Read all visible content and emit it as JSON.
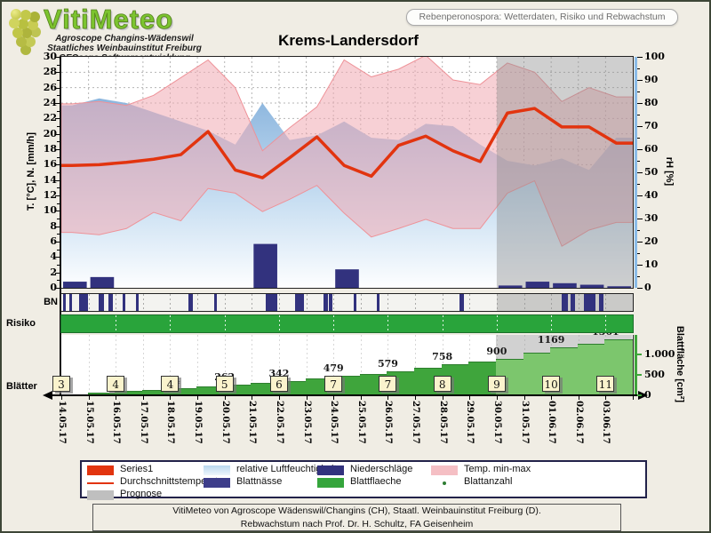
{
  "header": {
    "logo_title": "VitiMeteo",
    "logo_lines": [
      "Agroscope Changins-Wädenswil",
      "Staatliches Weinbauinstitut Freiburg",
      "GEOsens Softwareentwicklung"
    ],
    "info_box": "Rebenperonospora: Wetterdaten, Risiko und Rebwachstum",
    "title": "Krems-Landersdorf"
  },
  "axes": {
    "left_title": "T. [°C], N. [mm/h]",
    "left_min": 0,
    "left_max": 30,
    "left_step": 2,
    "right_title": "rH [%]",
    "right_min": 0,
    "right_max": 100,
    "right_step": 10,
    "leaf_axis_title": "Blattfläche [cm²]",
    "leaf_ticks": [
      {
        "value": 0,
        "label": "0"
      },
      {
        "value": 500,
        "label": "500"
      },
      {
        "value": 1000,
        "label": "1.000"
      }
    ]
  },
  "labels": {
    "bn": "BN",
    "risiko": "Risiko",
    "blaetter": "Blätter"
  },
  "chart_data": {
    "type": "line",
    "title": "Krems-Landersdorf",
    "x": [
      "14.05.17",
      "15.05.17",
      "16.05.17",
      "17.05.17",
      "18.05.17",
      "19.05.17",
      "20.05.17",
      "21.05.17",
      "22.05.17",
      "23.05.17",
      "24.05.17",
      "25.05.17",
      "26.05.17",
      "27.05.17",
      "28.05.17",
      "29.05.17",
      "30.05.17",
      "31.05.17",
      "01.06.17",
      "02.06.17",
      "03.06.17"
    ],
    "ylim_left": [
      0,
      30
    ],
    "ylim_right": [
      0,
      100
    ],
    "ylim_leaf": [
      0,
      1450
    ],
    "prognose_start_index": 16,
    "series": [
      {
        "name": "Durchschnittstemperatur",
        "type": "line",
        "axis": "left",
        "color": "#e2340f",
        "values": [
          15.9,
          16.0,
          16.3,
          16.7,
          17.3,
          20.3,
          15.3,
          14.3,
          16.9,
          19.6,
          15.9,
          14.5,
          18.5,
          19.7,
          17.8,
          16.4,
          22.7,
          23.3,
          20.9,
          20.9,
          18.8
        ]
      },
      {
        "name": "Temp. min-max",
        "type": "band",
        "axis": "left",
        "color": "#f3b8bd",
        "max": [
          23.9,
          24.2,
          23.7,
          25.0,
          27.3,
          29.6,
          26.0,
          17.8,
          20.8,
          23.5,
          29.6,
          27.4,
          28.4,
          30.2,
          27.0,
          26.4,
          29.2,
          28.0,
          24.2,
          26.0,
          24.8
        ],
        "min": [
          7.2,
          6.9,
          7.7,
          9.8,
          8.7,
          12.9,
          12.3,
          9.9,
          11.5,
          13.3,
          9.7,
          6.6,
          7.7,
          8.9,
          7.7,
          7.7,
          12.3,
          13.9,
          5.4,
          7.5,
          8.5
        ]
      },
      {
        "name": "relative Luftfeuchtigkeit",
        "type": "area",
        "axis": "right",
        "color": "#9fc3e6",
        "values": [
          79,
          82,
          80,
          76,
          72,
          68,
          62,
          80,
          64,
          66,
          72,
          65,
          64,
          71,
          70,
          62,
          55,
          53,
          56,
          51,
          65
        ]
      },
      {
        "name": "Niederschläge",
        "type": "bar",
        "axis": "left",
        "color": "#32327e",
        "values": [
          0.8,
          1.4,
          0,
          0,
          0,
          0,
          0,
          5.7,
          0,
          0,
          2.4,
          0,
          0,
          0,
          0,
          0,
          0.3,
          0.8,
          0.6,
          0.4,
          0.2
        ]
      },
      {
        "name": "Blattnässe",
        "type": "intervals",
        "color": "#32327e",
        "intervals": [
          [
            0.08,
            0.16
          ],
          [
            0.3,
            0.4
          ],
          [
            0.65,
            0.98
          ],
          [
            1.37,
            1.57
          ],
          [
            1.73,
            1.89
          ],
          [
            2.25,
            2.35
          ],
          [
            2.74,
            2.84
          ],
          [
            4.67,
            4.84
          ],
          [
            5.62,
            5.72
          ],
          [
            7.5,
            7.95
          ],
          [
            8.58,
            8.92
          ],
          [
            9.63,
            9.8
          ],
          [
            9.84,
            9.97
          ],
          [
            10.75,
            10.85
          ],
          [
            11.58,
            11.7
          ],
          [
            14.62,
            14.8
          ],
          [
            18.38,
            18.62
          ],
          [
            18.7,
            18.88
          ],
          [
            19.2,
            19.63
          ],
          [
            19.75,
            19.92
          ]
        ]
      },
      {
        "name": "Risiko",
        "type": "status",
        "color": "#29a43b"
      },
      {
        "name": "Blattflaeche",
        "type": "bar",
        "axis": "leaf",
        "color": "#3fa53c",
        "color_forecast": "#7cc66d",
        "values": [
          30,
          65,
          100,
          132,
          164,
          213,
          262,
          302,
          342,
          410,
          479,
          529,
          579,
          668,
          758,
          829,
          900,
          1034,
          1169,
          1265,
          1361
        ],
        "step_labels": [
          "",
          "",
          "164",
          "262",
          "342",
          "479",
          "579",
          "758",
          "900",
          "1169",
          "1361"
        ],
        "counts": [
          3,
          4,
          4,
          5,
          6,
          7,
          7,
          8,
          9,
          10,
          11
        ]
      }
    ]
  },
  "legend": {
    "items": [
      {
        "label": "Series1",
        "swatch": "rect",
        "color": "#e2340f",
        "col": 0,
        "row": 0
      },
      {
        "label": "relative Luftfeuchtigkeit",
        "swatch": "gradient",
        "color": "#b9d8ee",
        "col": 1,
        "row": 0
      },
      {
        "label": "Niederschläge",
        "swatch": "rect",
        "color": "#32327e",
        "col": 2,
        "row": 0
      },
      {
        "label": "Temp. min-max",
        "swatch": "rect",
        "color": "#f5bfc4",
        "col": 3,
        "row": 0
      },
      {
        "label": "Durchschnittstemperatur",
        "swatch": "line",
        "color": "#e2340f",
        "col": 0,
        "row": 1
      },
      {
        "label": "Blattnässe",
        "swatch": "rect",
        "color": "#3d3d8a",
        "col": 1,
        "row": 1
      },
      {
        "label": "Blattflaeche",
        "swatch": "rect",
        "color": "#35a53c",
        "col": 2,
        "row": 1
      },
      {
        "label": "Blattanzahl",
        "swatch": "dot",
        "color": "#2e7d32",
        "col": 3,
        "row": 1
      },
      {
        "label": "Prognose",
        "swatch": "rect",
        "color": "#bfbfbf",
        "col": 0,
        "row": 2
      }
    ]
  },
  "footer": {
    "line1": "VitiMeteo von Agroscope Wädenswil/Changins (CH), Staatl. Weinbauinstitut Freiburg (D).",
    "line2": "Rebwachstum nach Prof. Dr. H. Schultz, FA Geisenheim"
  }
}
